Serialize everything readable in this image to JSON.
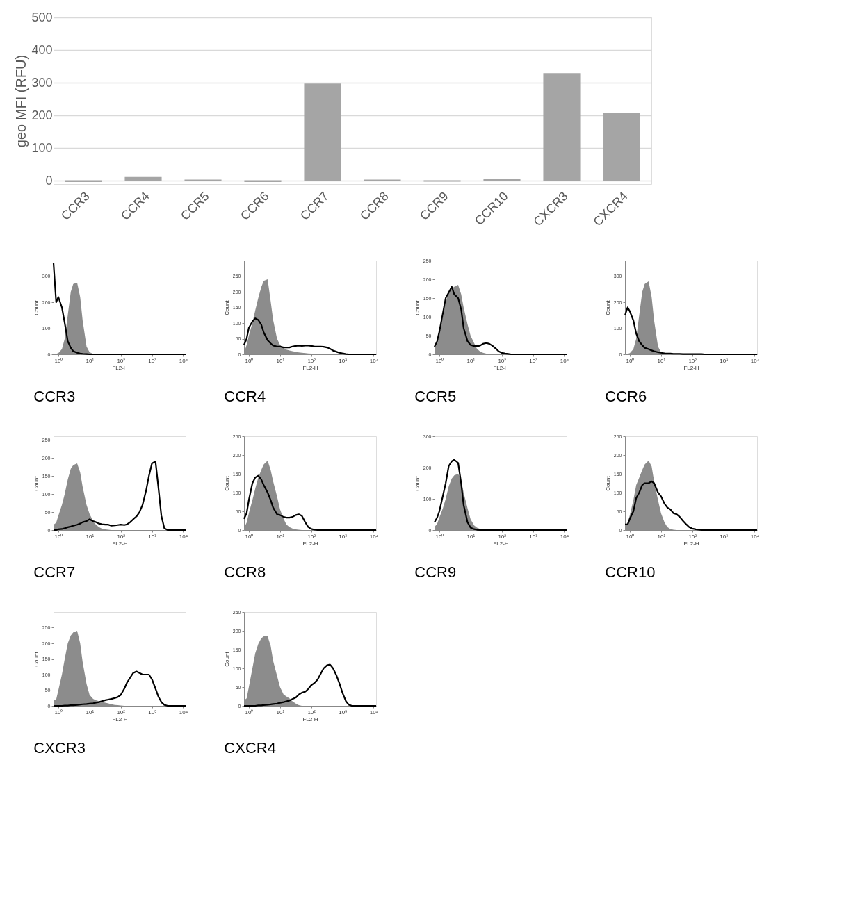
{
  "chart_data": [
    {
      "type": "bar",
      "categories": [
        "CCR3",
        "CCR4",
        "CCR5",
        "CCR6",
        "CCR7",
        "CCR8",
        "CCR9",
        "CCR10",
        "CXCR3",
        "CXCR4"
      ],
      "values": [
        -2,
        10,
        2,
        -2,
        296,
        2,
        -1,
        5,
        328,
        206
      ],
      "color": "#a5a5a5",
      "ylabel": "geo MFI (RFU)",
      "ylim": [
        -10,
        500
      ],
      "yticks": [
        0,
        100,
        200,
        300,
        400,
        500
      ],
      "grid": "y"
    },
    {
      "type": "area",
      "title": "CCR3",
      "xlabel": "FL2-H",
      "ylabel": "Count",
      "log": "x",
      "xlim": [
        0.7,
        12000
      ],
      "xticks": [
        {
          "value": 1,
          "label": "10⁰"
        },
        {
          "value": 10,
          "label": "10¹"
        },
        {
          "value": 100,
          "label": "10²"
        },
        {
          "value": 1000,
          "label": "10³"
        },
        {
          "value": 10000,
          "label": "10⁴"
        }
      ],
      "ylim": [
        0,
        360
      ],
      "yticks": [
        0,
        100,
        200,
        300
      ],
      "x": [
        0.7,
        0.85,
        1,
        1.3,
        1.6,
        2,
        2.5,
        3,
        4,
        5,
        6,
        8,
        10,
        13,
        16,
        20,
        25,
        32,
        40,
        50,
        65,
        80,
        100,
        130,
        160,
        200,
        250,
        320,
        400,
        500,
        650,
        800,
        1000,
        1300,
        1600,
        2000,
        2500,
        3200,
        5000,
        12000
      ],
      "series": [
        {
          "type": "area",
          "color": "#8c8c8c",
          "values": [
            0,
            2,
            5,
            20,
            60,
            150,
            240,
            270,
            275,
            220,
            130,
            30,
            8,
            2,
            0,
            0,
            0,
            0,
            0,
            0,
            0,
            0,
            0,
            0,
            0,
            0,
            0,
            0,
            0,
            0,
            0,
            0,
            0,
            0,
            0,
            0,
            0,
            0,
            0,
            0
          ]
        },
        {
          "type": "line",
          "color": "#000000",
          "values": [
            350,
            200,
            220,
            180,
            120,
            50,
            25,
            12,
            6,
            3,
            2,
            1,
            0,
            0,
            0,
            0,
            0,
            0,
            0,
            0,
            0,
            0,
            0,
            0,
            0,
            0,
            0,
            0,
            0,
            0,
            0,
            0,
            0,
            0,
            0,
            0,
            0,
            0,
            0,
            0
          ]
        }
      ]
    },
    {
      "type": "area",
      "title": "CCR4",
      "xlabel": "FL2-H",
      "ylabel": "Count",
      "log": "x",
      "xlim": [
        0.7,
        12000
      ],
      "xticks": [
        {
          "value": 1,
          "label": "10⁰"
        },
        {
          "value": 10,
          "label": "10¹"
        },
        {
          "value": 100,
          "label": "10²"
        },
        {
          "value": 1000,
          "label": "10³"
        },
        {
          "value": 10000,
          "label": "10⁴"
        }
      ],
      "ylim": [
        0,
        300
      ],
      "yticks": [
        0,
        50,
        100,
        150,
        200,
        250
      ],
      "x": [
        0.7,
        0.85,
        1,
        1.3,
        1.6,
        2,
        2.5,
        3,
        4,
        5,
        6,
        8,
        10,
        13,
        16,
        20,
        25,
        32,
        40,
        50,
        65,
        80,
        100,
        130,
        160,
        200,
        250,
        320,
        400,
        500,
        650,
        800,
        1000,
        1300,
        1600,
        2000,
        2500,
        3200,
        5000,
        12000
      ],
      "series": [
        {
          "type": "area",
          "color": "#8c8c8c",
          "values": [
            5,
            30,
            60,
            100,
            140,
            180,
            215,
            235,
            240,
            170,
            110,
            50,
            30,
            20,
            15,
            12,
            10,
            8,
            6,
            5,
            4,
            3,
            2,
            1,
            0,
            0,
            0,
            0,
            0,
            0,
            0,
            0,
            0,
            0,
            0,
            0,
            0,
            0,
            0,
            0
          ]
        },
        {
          "type": "line",
          "color": "#000000",
          "values": [
            30,
            50,
            85,
            105,
            115,
            110,
            95,
            70,
            45,
            35,
            28,
            25,
            25,
            22,
            22,
            22,
            25,
            27,
            28,
            27,
            28,
            28,
            27,
            25,
            25,
            25,
            24,
            22,
            18,
            12,
            8,
            5,
            3,
            1,
            0,
            0,
            0,
            0,
            0,
            0
          ]
        }
      ]
    },
    {
      "type": "area",
      "title": "CCR5",
      "xlabel": "FL2-H",
      "ylabel": "Count",
      "log": "x",
      "xlim": [
        0.7,
        12000
      ],
      "xticks": [
        {
          "value": 1,
          "label": "10⁰"
        },
        {
          "value": 10,
          "label": "10¹"
        },
        {
          "value": 100,
          "label": "10²"
        },
        {
          "value": 1000,
          "label": "10³"
        },
        {
          "value": 10000,
          "label": "10⁴"
        }
      ],
      "ylim": [
        0,
        250
      ],
      "yticks": [
        0,
        50,
        100,
        150,
        200,
        250
      ],
      "x": [
        0.7,
        0.85,
        1,
        1.3,
        1.6,
        2,
        2.5,
        3,
        4,
        5,
        6,
        8,
        10,
        13,
        16,
        20,
        25,
        32,
        40,
        50,
        65,
        80,
        100,
        130,
        160,
        200,
        250,
        320,
        400,
        500,
        650,
        800,
        1000,
        1300,
        1600,
        2000,
        2500,
        3200,
        5000,
        12000
      ],
      "series": [
        {
          "type": "area",
          "color": "#8c8c8c",
          "values": [
            15,
            30,
            55,
            100,
            140,
            165,
            175,
            180,
            185,
            160,
            125,
            80,
            50,
            30,
            15,
            8,
            4,
            2,
            1,
            0,
            0,
            0,
            0,
            0,
            0,
            0,
            0,
            0,
            0,
            0,
            0,
            0,
            0,
            0,
            0,
            0,
            0,
            0,
            0,
            0
          ]
        },
        {
          "type": "line",
          "color": "#000000",
          "values": [
            20,
            35,
            60,
            110,
            150,
            165,
            180,
            160,
            150,
            120,
            70,
            35,
            25,
            22,
            22,
            23,
            28,
            30,
            28,
            23,
            15,
            8,
            4,
            2,
            1,
            0,
            0,
            0,
            0,
            0,
            0,
            0,
            0,
            0,
            0,
            0,
            0,
            0,
            0,
            0
          ]
        }
      ]
    },
    {
      "type": "area",
      "title": "CCR6",
      "xlabel": "FL2-H",
      "ylabel": "Count",
      "log": "x",
      "xlim": [
        0.7,
        12000
      ],
      "xticks": [
        {
          "value": 1,
          "label": "10⁰"
        },
        {
          "value": 10,
          "label": "10¹"
        },
        {
          "value": 100,
          "label": "10²"
        },
        {
          "value": 1000,
          "label": "10³"
        },
        {
          "value": 10000,
          "label": "10⁴"
        }
      ],
      "ylim": [
        0,
        360
      ],
      "yticks": [
        0,
        100,
        200,
        300
      ],
      "x": [
        0.7,
        0.85,
        1,
        1.3,
        1.6,
        2,
        2.5,
        3,
        4,
        5,
        6,
        8,
        10,
        13,
        16,
        20,
        25,
        32,
        40,
        50,
        65,
        80,
        100,
        130,
        160,
        200,
        250,
        320,
        400,
        500,
        650,
        800,
        1000,
        1300,
        1600,
        2000,
        2500,
        3200,
        5000,
        12000
      ],
      "series": [
        {
          "type": "area",
          "color": "#8c8c8c",
          "values": [
            0,
            2,
            5,
            20,
            60,
            150,
            240,
            270,
            280,
            220,
            130,
            30,
            8,
            2,
            0,
            0,
            0,
            0,
            0,
            0,
            0,
            0,
            0,
            0,
            0,
            0,
            0,
            0,
            0,
            0,
            0,
            0,
            0,
            0,
            0,
            0,
            0,
            0,
            0,
            0
          ]
        },
        {
          "type": "line",
          "color": "#000000",
          "values": [
            150,
            180,
            165,
            130,
            80,
            50,
            35,
            25,
            20,
            15,
            12,
            8,
            6,
            4,
            3,
            3,
            2,
            2,
            2,
            1,
            1,
            1,
            1,
            1,
            1,
            1,
            0,
            0,
            0,
            0,
            0,
            0,
            0,
            0,
            0,
            0,
            0,
            0,
            0,
            0
          ]
        }
      ]
    },
    {
      "type": "area",
      "title": "CCR7",
      "xlabel": "FL2-H",
      "ylabel": "Count",
      "log": "x",
      "xlim": [
        0.7,
        12000
      ],
      "xticks": [
        {
          "value": 1,
          "label": "10⁰"
        },
        {
          "value": 10,
          "label": "10¹"
        },
        {
          "value": 100,
          "label": "10²"
        },
        {
          "value": 1000,
          "label": "10³"
        },
        {
          "value": 10000,
          "label": "10⁴"
        }
      ],
      "ylim": [
        0,
        260
      ],
      "yticks": [
        0,
        50,
        100,
        150,
        200,
        250
      ],
      "x": [
        0.7,
        0.85,
        1,
        1.3,
        1.6,
        2,
        2.5,
        3,
        4,
        5,
        6,
        8,
        10,
        13,
        16,
        20,
        25,
        32,
        40,
        50,
        65,
        80,
        100,
        130,
        160,
        200,
        250,
        320,
        400,
        500,
        650,
        800,
        1000,
        1300,
        1600,
        2000,
        2500,
        3200,
        5000,
        12000
      ],
      "series": [
        {
          "type": "area",
          "color": "#8c8c8c",
          "values": [
            15,
            20,
            40,
            70,
            100,
            140,
            170,
            180,
            185,
            160,
            120,
            70,
            45,
            25,
            15,
            8,
            4,
            2,
            1,
            0,
            0,
            0,
            0,
            0,
            0,
            0,
            0,
            0,
            0,
            0,
            0,
            0,
            0,
            0,
            0,
            0,
            0,
            0,
            0,
            0
          ]
        },
        {
          "type": "line",
          "color": "#000000",
          "values": [
            0,
            0,
            2,
            3,
            5,
            8,
            10,
            12,
            15,
            18,
            22,
            25,
            30,
            25,
            22,
            18,
            16,
            15,
            15,
            12,
            13,
            14,
            15,
            14,
            16,
            22,
            30,
            38,
            50,
            70,
            110,
            150,
            185,
            190,
            120,
            40,
            5,
            0,
            0,
            0
          ]
        }
      ]
    },
    {
      "type": "area",
      "title": "CCR8",
      "xlabel": "FL2-H",
      "ylabel": "Count",
      "log": "x",
      "xlim": [
        0.7,
        12000
      ],
      "xticks": [
        {
          "value": 1,
          "label": "10⁰"
        },
        {
          "value": 10,
          "label": "10¹"
        },
        {
          "value": 100,
          "label": "10²"
        },
        {
          "value": 1000,
          "label": "10³"
        },
        {
          "value": 10000,
          "label": "10⁴"
        }
      ],
      "ylim": [
        0,
        250
      ],
      "yticks": [
        0,
        50,
        100,
        150,
        200,
        250
      ],
      "x": [
        0.7,
        0.85,
        1,
        1.3,
        1.6,
        2,
        2.5,
        3,
        4,
        5,
        6,
        8,
        10,
        13,
        16,
        20,
        25,
        32,
        40,
        50,
        65,
        80,
        100,
        130,
        160,
        200,
        250,
        320,
        400,
        500,
        650,
        800,
        1000,
        1300,
        1600,
        2000,
        2500,
        3200,
        5000,
        12000
      ],
      "series": [
        {
          "type": "area",
          "color": "#8c8c8c",
          "values": [
            5,
            20,
            45,
            80,
            110,
            140,
            160,
            175,
            185,
            160,
            130,
            90,
            55,
            30,
            15,
            8,
            4,
            2,
            1,
            0,
            0,
            0,
            0,
            0,
            0,
            0,
            0,
            0,
            0,
            0,
            0,
            0,
            0,
            0,
            0,
            0,
            0,
            0,
            0,
            0
          ]
        },
        {
          "type": "line",
          "color": "#000000",
          "values": [
            30,
            45,
            80,
            125,
            140,
            145,
            135,
            120,
            100,
            80,
            60,
            42,
            40,
            35,
            33,
            33,
            35,
            40,
            42,
            38,
            20,
            8,
            3,
            1,
            0,
            0,
            0,
            0,
            0,
            0,
            0,
            0,
            0,
            0,
            0,
            0,
            0,
            0,
            0,
            0
          ]
        }
      ]
    },
    {
      "type": "area",
      "title": "CCR9",
      "xlabel": "FL2-H",
      "ylabel": "Count",
      "log": "x",
      "xlim": [
        0.7,
        12000
      ],
      "xticks": [
        {
          "value": 1,
          "label": "10⁰"
        },
        {
          "value": 10,
          "label": "10¹"
        },
        {
          "value": 100,
          "label": "10²"
        },
        {
          "value": 1000,
          "label": "10³"
        },
        {
          "value": 10000,
          "label": "10⁴"
        }
      ],
      "ylim": [
        0,
        300
      ],
      "yticks": [
        0,
        100,
        200,
        300
      ],
      "x": [
        0.7,
        0.85,
        1,
        1.3,
        1.6,
        2,
        2.5,
        3,
        4,
        5,
        6,
        8,
        10,
        13,
        16,
        20,
        25,
        32,
        40,
        50,
        65,
        80,
        100,
        130,
        160,
        200,
        250,
        320,
        400,
        500,
        650,
        800,
        1000,
        1300,
        1600,
        2000,
        2500,
        3200,
        5000,
        12000
      ],
      "series": [
        {
          "type": "area",
          "color": "#8c8c8c",
          "values": [
            10,
            20,
            40,
            70,
            100,
            140,
            165,
            175,
            180,
            160,
            120,
            70,
            35,
            15,
            8,
            4,
            2,
            1,
            0,
            0,
            0,
            0,
            0,
            0,
            0,
            0,
            0,
            0,
            0,
            0,
            0,
            0,
            0,
            0,
            0,
            0,
            0,
            0,
            0,
            0
          ]
        },
        {
          "type": "line",
          "color": "#000000",
          "values": [
            25,
            40,
            60,
            110,
            150,
            205,
            220,
            225,
            215,
            150,
            80,
            25,
            8,
            3,
            1,
            0,
            0,
            0,
            0,
            0,
            0,
            0,
            0,
            0,
            0,
            0,
            0,
            0,
            0,
            0,
            0,
            0,
            0,
            0,
            0,
            0,
            0,
            0,
            0,
            0
          ]
        }
      ]
    },
    {
      "type": "area",
      "title": "CCR10",
      "xlabel": "FL2-H",
      "ylabel": "Count",
      "log": "x",
      "xlim": [
        0.7,
        12000
      ],
      "xticks": [
        {
          "value": 1,
          "label": "10⁰"
        },
        {
          "value": 10,
          "label": "10¹"
        },
        {
          "value": 100,
          "label": "10²"
        },
        {
          "value": 1000,
          "label": "10³"
        },
        {
          "value": 10000,
          "label": "10⁴"
        }
      ],
      "ylim": [
        0,
        250
      ],
      "yticks": [
        0,
        50,
        100,
        150,
        200,
        250
      ],
      "x": [
        0.7,
        0.85,
        1,
        1.3,
        1.6,
        2,
        2.5,
        3,
        4,
        5,
        6,
        8,
        10,
        13,
        16,
        20,
        25,
        32,
        40,
        50,
        65,
        80,
        100,
        130,
        160,
        200,
        250,
        320,
        400,
        500,
        650,
        800,
        1000,
        1300,
        1600,
        2000,
        2500,
        3200,
        5000,
        12000
      ],
      "series": [
        {
          "type": "area",
          "color": "#8c8c8c",
          "values": [
            10,
            20,
            40,
            80,
            120,
            140,
            160,
            175,
            185,
            170,
            130,
            80,
            45,
            20,
            8,
            3,
            1,
            0,
            0,
            0,
            0,
            0,
            0,
            0,
            0,
            0,
            0,
            0,
            0,
            0,
            0,
            0,
            0,
            0,
            0,
            0,
            0,
            0,
            0,
            0
          ]
        },
        {
          "type": "line",
          "color": "#000000",
          "values": [
            15,
            15,
            30,
            50,
            85,
            100,
            120,
            125,
            125,
            130,
            125,
            100,
            90,
            70,
            60,
            55,
            45,
            42,
            35,
            25,
            15,
            8,
            4,
            2,
            1,
            0,
            0,
            0,
            0,
            0,
            0,
            0,
            0,
            0,
            0,
            0,
            0,
            0,
            0,
            0
          ]
        }
      ]
    },
    {
      "type": "area",
      "title": "CXCR3",
      "xlabel": "FL2-H",
      "ylabel": "Count",
      "log": "x",
      "xlim": [
        0.7,
        12000
      ],
      "xticks": [
        {
          "value": 1,
          "label": "10⁰"
        },
        {
          "value": 10,
          "label": "10¹"
        },
        {
          "value": 100,
          "label": "10²"
        },
        {
          "value": 1000,
          "label": "10³"
        },
        {
          "value": 10000,
          "label": "10⁴"
        }
      ],
      "ylim": [
        0,
        300
      ],
      "yticks": [
        0,
        50,
        100,
        150,
        200,
        250
      ],
      "x": [
        0.7,
        0.85,
        1,
        1.3,
        1.6,
        2,
        2.5,
        3,
        4,
        5,
        6,
        8,
        10,
        13,
        16,
        20,
        25,
        32,
        40,
        50,
        65,
        80,
        100,
        130,
        160,
        200,
        250,
        320,
        400,
        500,
        650,
        800,
        1000,
        1300,
        1600,
        2000,
        2500,
        3200,
        5000,
        12000
      ],
      "series": [
        {
          "type": "area",
          "color": "#8c8c8c",
          "values": [
            20,
            20,
            50,
            100,
            150,
            200,
            225,
            235,
            240,
            200,
            140,
            70,
            35,
            22,
            18,
            15,
            12,
            10,
            8,
            5,
            3,
            2,
            1,
            0,
            0,
            0,
            0,
            0,
            0,
            0,
            0,
            0,
            0,
            0,
            0,
            0,
            0,
            0,
            0,
            0
          ]
        },
        {
          "type": "line",
          "color": "#000000",
          "values": [
            0,
            0,
            0,
            0,
            1,
            1,
            2,
            2,
            3,
            4,
            5,
            6,
            7,
            8,
            10,
            12,
            15,
            18,
            20,
            22,
            25,
            28,
            35,
            55,
            75,
            90,
            105,
            110,
            105,
            100,
            100,
            100,
            85,
            55,
            30,
            12,
            3,
            0,
            0,
            0
          ]
        }
      ]
    },
    {
      "type": "area",
      "title": "CXCR4",
      "xlabel": "FL2-H",
      "ylabel": "Count",
      "log": "x",
      "xlim": [
        0.7,
        12000
      ],
      "xticks": [
        {
          "value": 1,
          "label": "10⁰"
        },
        {
          "value": 10,
          "label": "10¹"
        },
        {
          "value": 100,
          "label": "10²"
        },
        {
          "value": 1000,
          "label": "10³"
        },
        {
          "value": 10000,
          "label": "10⁴"
        }
      ],
      "ylim": [
        0,
        250
      ],
      "yticks": [
        0,
        50,
        100,
        150,
        200,
        250
      ],
      "x": [
        0.7,
        0.85,
        1,
        1.3,
        1.6,
        2,
        2.5,
        3,
        4,
        5,
        6,
        8,
        10,
        13,
        16,
        20,
        25,
        32,
        40,
        50,
        65,
        80,
        100,
        130,
        160,
        200,
        250,
        320,
        400,
        500,
        650,
        800,
        1000,
        1300,
        1600,
        2000,
        2500,
        3200,
        5000,
        12000
      ],
      "series": [
        {
          "type": "area",
          "color": "#8c8c8c",
          "values": [
            15,
            20,
            50,
            100,
            140,
            165,
            180,
            185,
            185,
            160,
            120,
            80,
            50,
            30,
            25,
            20,
            12,
            6,
            2,
            0,
            0,
            0,
            0,
            0,
            0,
            0,
            0,
            0,
            0,
            0,
            0,
            0,
            0,
            0,
            0,
            0,
            0,
            0,
            0,
            0
          ]
        },
        {
          "type": "line",
          "color": "#000000",
          "values": [
            0,
            0,
            0,
            0,
            0,
            1,
            1,
            2,
            3,
            4,
            5,
            6,
            8,
            10,
            12,
            14,
            18,
            22,
            30,
            35,
            38,
            45,
            55,
            62,
            70,
            85,
            100,
            108,
            110,
            100,
            80,
            60,
            35,
            12,
            3,
            0,
            0,
            0,
            0,
            0
          ]
        }
      ]
    }
  ]
}
